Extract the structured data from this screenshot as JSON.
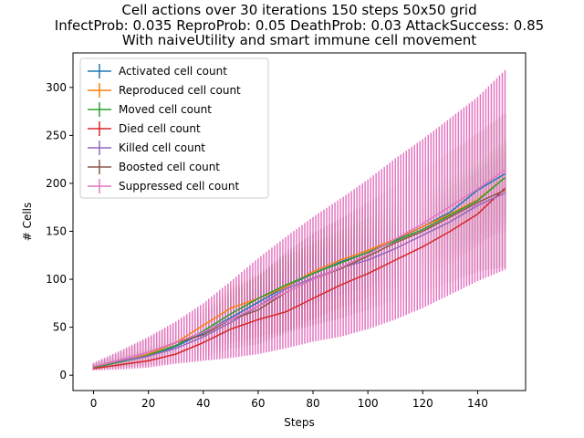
{
  "chart_data": {
    "type": "line",
    "title_lines": [
      "Cell actions over 30 iterations 150 steps 50x50 grid",
      "InfectProb: 0.035 ReproProb: 0.05 DeathProb: 0.03 AttackSuccess: 0.85",
      "With naiveUtility and smart immune cell movement"
    ],
    "xlabel": "Steps",
    "ylabel": "# Cells",
    "xlim": [
      -7.5,
      157.5
    ],
    "ylim": [
      -16,
      336
    ],
    "xticks": [
      0,
      20,
      40,
      60,
      80,
      100,
      120,
      140
    ],
    "yticks": [
      0,
      50,
      100,
      150,
      200,
      250,
      300
    ],
    "grid": false,
    "legend_position": "top-left",
    "error_bars": true,
    "series": [
      {
        "name": "Activated cell count",
        "color": "#1f77b4",
        "x": [
          0,
          10,
          20,
          30,
          40,
          50,
          60,
          70,
          80,
          90,
          100,
          110,
          120,
          130,
          140,
          150
        ],
        "values": [
          8,
          14,
          20,
          30,
          44,
          60,
          76,
          92,
          106,
          118,
          128,
          141,
          155,
          170,
          193,
          210
        ],
        "err": [
          2,
          3,
          4,
          6,
          8,
          10,
          12,
          13,
          14,
          15,
          16,
          17,
          18,
          19,
          20,
          22
        ]
      },
      {
        "name": "Reproduced cell count",
        "color": "#ff7f0e",
        "x": [
          0,
          10,
          20,
          30,
          40,
          50,
          60,
          70,
          80,
          90,
          100,
          110,
          120,
          130,
          140,
          150
        ],
        "values": [
          9,
          14,
          22,
          34,
          52,
          70,
          80,
          92,
          108,
          120,
          130,
          142,
          155,
          168,
          183,
          206
        ],
        "err": [
          2,
          4,
          6,
          10,
          16,
          22,
          25,
          26,
          26,
          26,
          27,
          27,
          28,
          28,
          30,
          32
        ]
      },
      {
        "name": "Moved cell count",
        "color": "#2ca02c",
        "x": [
          0,
          10,
          20,
          30,
          40,
          50,
          60,
          70,
          80,
          90,
          100,
          110,
          120,
          130,
          140,
          150
        ],
        "values": [
          8,
          14,
          21,
          31,
          46,
          64,
          80,
          94,
          106,
          117,
          128,
          140,
          152,
          167,
          182,
          206
        ],
        "err": [
          2,
          4,
          6,
          9,
          14,
          20,
          24,
          30,
          32,
          34,
          36,
          37,
          38,
          38,
          38,
          38
        ]
      },
      {
        "name": "Died cell count",
        "color": "#d62728",
        "x": [
          0,
          10,
          20,
          30,
          40,
          50,
          60,
          70,
          80,
          90,
          100,
          110,
          120,
          130,
          140,
          150
        ],
        "values": [
          7,
          11,
          15,
          22,
          34,
          48,
          58,
          66,
          80,
          94,
          106,
          120,
          134,
          150,
          168,
          195
        ],
        "err": [
          2,
          3,
          5,
          7,
          10,
          14,
          18,
          20,
          22,
          24,
          26,
          28,
          30,
          32,
          34,
          36
        ]
      },
      {
        "name": "Killed cell count",
        "color": "#9467bd",
        "x": [
          0,
          10,
          20,
          30,
          40,
          50,
          60,
          70,
          80,
          90,
          100,
          110,
          120,
          130,
          140,
          150
        ],
        "values": [
          9,
          15,
          20,
          28,
          40,
          55,
          72,
          90,
          101,
          112,
          120,
          132,
          146,
          160,
          177,
          190
        ],
        "err": [
          3,
          5,
          7,
          9,
          12,
          16,
          20,
          23,
          26,
          28,
          30,
          32,
          34,
          36,
          38,
          40
        ]
      },
      {
        "name": "Boosted cell count",
        "color": "#8c564b",
        "x": [
          0,
          10,
          20,
          30,
          40,
          50,
          60,
          70,
          80,
          90,
          100,
          110,
          120,
          130,
          140,
          150
        ],
        "values": [
          9,
          16,
          24,
          34,
          42,
          58,
          68,
          86,
          100,
          111,
          124,
          138,
          150,
          165,
          180,
          193
        ],
        "err": [
          3,
          8,
          14,
          20,
          24,
          30,
          36,
          42,
          48,
          52,
          56,
          60,
          64,
          68,
          72,
          80
        ]
      },
      {
        "name": "Suppressed cell count",
        "color": "#e377c2",
        "x": [
          0,
          10,
          20,
          30,
          40,
          50,
          60,
          70,
          80,
          90,
          100,
          110,
          120,
          130,
          140,
          150
        ],
        "values": [
          9,
          16,
          24,
          34,
          45,
          58,
          72,
          86,
          100,
          112,
          126,
          142,
          158,
          176,
          194,
          214
        ],
        "err": [
          4,
          10,
          16,
          22,
          30,
          40,
          50,
          58,
          65,
          72,
          78,
          84,
          88,
          92,
          96,
          104
        ]
      }
    ]
  }
}
